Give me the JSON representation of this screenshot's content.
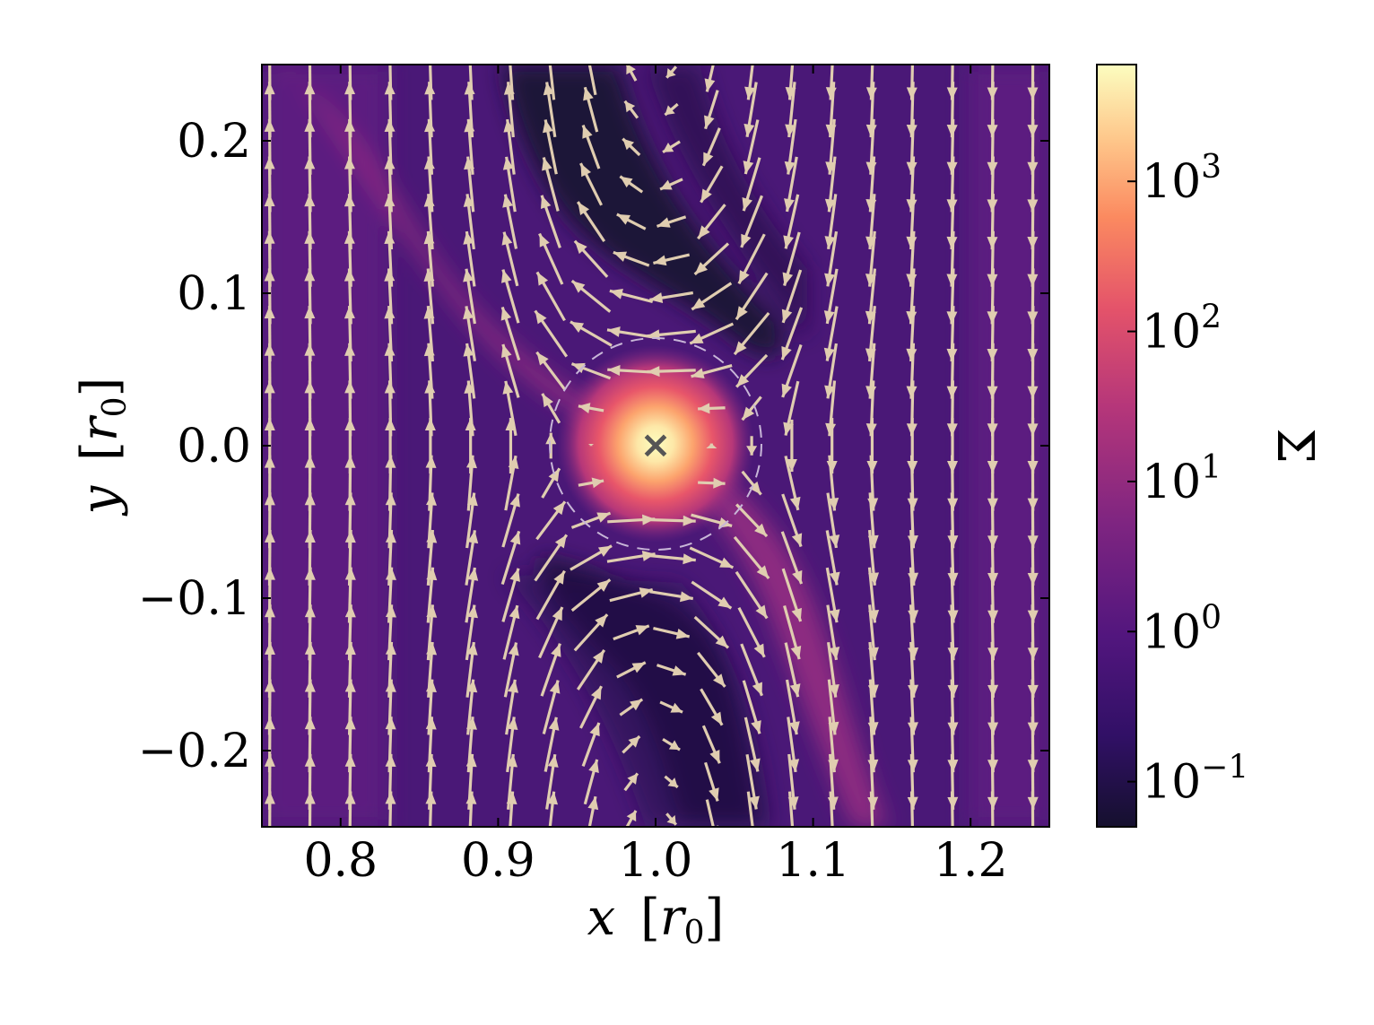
{
  "chart_data": {
    "type": "heatmap",
    "description_fields": {
      "xlabel": "x [r0]",
      "ylabel": "y [r0]",
      "colorbar_label": "Σ"
    },
    "xlim": [
      0.75,
      1.25
    ],
    "ylim": [
      -0.25,
      0.25
    ],
    "xticks": [
      0.8,
      0.9,
      1.0,
      1.1,
      1.2
    ],
    "xtick_labels": [
      "0.8",
      "0.9",
      "1.0",
      "1.1",
      "1.2"
    ],
    "yticks": [
      0.2,
      0.1,
      0.0,
      -0.1,
      -0.2
    ],
    "ytick_labels": [
      "0.2",
      "0.1",
      "0.0",
      "−0.1",
      "−0.2"
    ],
    "colorbar": {
      "scale": "log",
      "range": [
        0.05,
        6000
      ],
      "ticks": [
        1000,
        100,
        10,
        1,
        0.1
      ],
      "tick_base": "10",
      "tick_exponents": [
        "3",
        "2",
        "1",
        "0",
        "−1"
      ],
      "colormap": "magma"
    },
    "marker": {
      "symbol": "×",
      "x": 1.0,
      "y": 0.0
    },
    "hill_circle": {
      "center_x": 1.0,
      "center_y": 0.0,
      "radius": 0.069,
      "style": "dashed"
    },
    "quiver": {
      "color": "#e0cdb0",
      "field": "velocity relative to planet"
    }
  },
  "labels": {
    "x_var": "x",
    "x_unit_var": "r",
    "x_unit_sub": "0",
    "y_var": "y",
    "y_unit_var": "r",
    "y_unit_sub": "0",
    "colorbar_symbol": "Σ"
  },
  "colors": {
    "background_field": "#5a1f80",
    "arrow": "#e0cdb0",
    "marker": "#555555",
    "circle": "#c8b6d8"
  }
}
